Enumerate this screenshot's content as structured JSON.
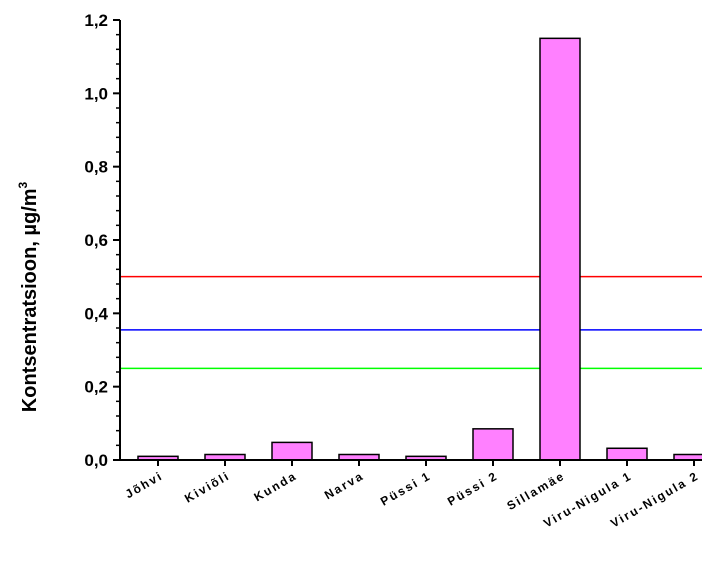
{
  "chart_data": {
    "type": "bar",
    "title": "",
    "xlabel": "",
    "ylabel": "Kontsentratsioon, µg/m",
    "ylabel_superscript": "3",
    "ylim": [
      0,
      1.2
    ],
    "yticks": [
      "0,0",
      "0,2",
      "0,4",
      "0,6",
      "0,8",
      "1,0",
      "1,2"
    ],
    "categories": [
      "Jõhvi",
      "Kiviõli",
      "Kunda",
      "Narva",
      "Püssi 1",
      "Püssi 2",
      "Sillamäe",
      "Viru-Nigula 1",
      "Viru-Nigula 2"
    ],
    "values": [
      0.01,
      0.015,
      0.048,
      0.015,
      0.01,
      0.085,
      1.15,
      0.032,
      0.015
    ],
    "bar_color": "#ff80ff",
    "reference_lines": [
      {
        "value": 0.5,
        "color": "#ff0000"
      },
      {
        "value": 0.355,
        "color": "#0000ff"
      },
      {
        "value": 0.25,
        "color": "#00ff00"
      }
    ],
    "grid": false,
    "legend": "none"
  }
}
